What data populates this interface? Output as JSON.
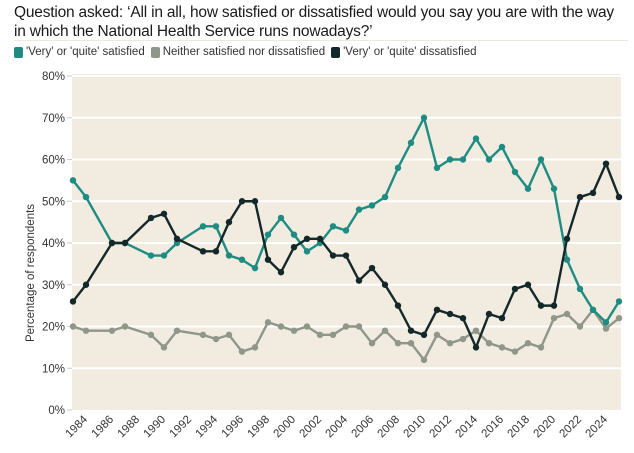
{
  "question": "Question asked: ‘All in all, how satisfied or dissatisfied would you say you are with the way in which the National Health Service runs nowadays?’",
  "colors": {
    "satisfied": "#1e8c82",
    "neither": "#8f968a",
    "dissatisfied": "#14282a",
    "plot_background": "#f2ebe0",
    "gridline": "#ffffff"
  },
  "chart_data": {
    "type": "line",
    "title": "Question asked: ‘All in all, how satisfied or dissatisfied would you say you are with the way in which the National Health Service runs nowadays?’",
    "xlabel": "",
    "ylabel": "Percentage of respondents",
    "xlim": [
      1983,
      2025
    ],
    "ylim": [
      0,
      80
    ],
    "grid": true,
    "legend_position": "top-left",
    "y_ticks": [
      0,
      10,
      20,
      30,
      40,
      50,
      60,
      70,
      80
    ],
    "y_tick_labels": [
      "0%",
      "10%",
      "20%",
      "30%",
      "40%",
      "50%",
      "60%",
      "70%",
      "80%"
    ],
    "x_ticks": [
      1984,
      1986,
      1988,
      1990,
      1992,
      1994,
      1996,
      1998,
      2000,
      2002,
      2004,
      2006,
      2008,
      2010,
      2012,
      2014,
      2016,
      2018,
      2020,
      2022,
      2024
    ],
    "x_tick_labels": [
      "1984",
      "1986",
      "1988",
      "1990",
      "1992",
      "1994",
      "1996",
      "1998",
      "2000",
      "2002",
      "2004",
      "2006",
      "2008",
      "2010",
      "2012",
      "2014",
      "2016",
      "2018",
      "2020",
      "2022",
      "2024"
    ],
    "x": [
      1983,
      1984,
      1986,
      1987,
      1989,
      1990,
      1991,
      1993,
      1994,
      1995,
      1996,
      1997,
      1998,
      1999,
      2000,
      2001,
      2002,
      2003,
      2004,
      2005,
      2006,
      2007,
      2008,
      2009,
      2010,
      2011,
      2012,
      2013,
      2014,
      2015,
      2016,
      2017,
      2018,
      2019,
      2020,
      2021,
      2022,
      2023,
      2024,
      2025
    ],
    "series": [
      {
        "name": "'Very' or 'quite' satisfied",
        "key": "satisfied",
        "values": [
          55,
          51,
          40,
          40,
          37,
          37,
          40,
          44,
          44,
          37,
          36,
          34,
          42,
          46,
          42,
          38,
          40,
          44,
          43,
          48,
          49,
          51,
          58,
          64,
          70,
          58,
          60,
          60,
          65,
          60,
          63,
          57,
          53,
          60,
          53,
          36,
          29,
          24,
          21,
          26
        ]
      },
      {
        "name": "Neither satisfied nor dissatisfied",
        "key": "neither",
        "values": [
          20,
          19,
          19,
          20,
          18,
          15,
          19,
          18,
          17,
          18,
          14,
          15,
          21,
          20,
          19,
          20,
          18,
          18,
          20,
          20,
          16,
          19,
          16,
          16,
          12,
          18,
          16,
          17,
          19,
          16,
          15,
          14,
          16,
          15,
          22,
          23,
          20,
          24,
          19.5,
          22
        ]
      },
      {
        "name": "'Very' or 'quite' dissatisfied",
        "key": "dissatisfied",
        "values": [
          26,
          30,
          40,
          40,
          46,
          47,
          41,
          38,
          38,
          45,
          50,
          50,
          36,
          33,
          39,
          41,
          41,
          37,
          37,
          31,
          34,
          30,
          25,
          19,
          18,
          24,
          23,
          22,
          15,
          23,
          22,
          29,
          30,
          25,
          25,
          41,
          51,
          52,
          59,
          51
        ]
      }
    ]
  }
}
